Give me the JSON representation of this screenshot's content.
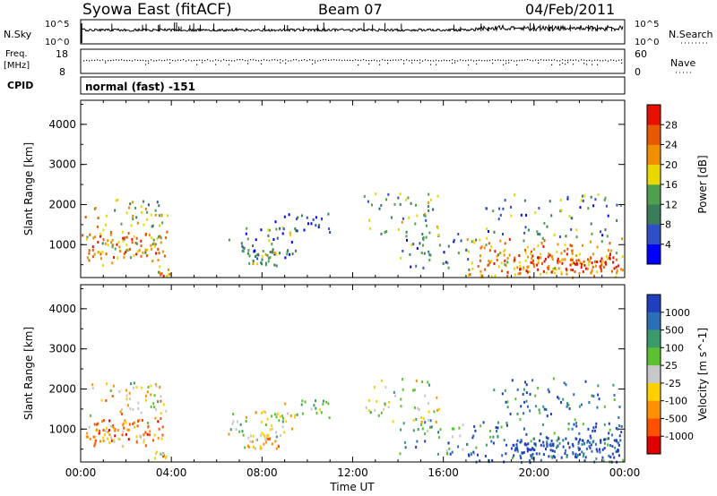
{
  "header": {
    "station": "Syowa East (fitACF)",
    "beam": "Beam 07",
    "date": "04/Feb/2011"
  },
  "noise_panel": {
    "left_label": "N.Sky",
    "right_label": "N.Search",
    "tick_top": "10^5",
    "tick_bottom": "10^0"
  },
  "freq_panel": {
    "left_label_1": "Freq.",
    "left_label_2": "[MHz]",
    "right_label": "Nave",
    "left_ticks": [
      "18",
      "8"
    ],
    "right_ticks": [
      "60",
      "0"
    ]
  },
  "cpid": {
    "label": "CPID",
    "value": "normal (fast) -151"
  },
  "chart_data": [
    {
      "type": "heatmap",
      "name": "power",
      "ylabel": "Slant Range [km]",
      "ylim": [
        180,
        4600
      ],
      "yticks": [
        "1000",
        "2000",
        "3000",
        "4000"
      ],
      "xlim": [
        0,
        24
      ],
      "colorbar": {
        "label": "Power [dB]",
        "tick_labels": [
          "4",
          "8",
          "12",
          "16",
          "20",
          "24",
          "28"
        ],
        "colors": [
          "#0000ff",
          "#2f4fc8",
          "#3a7d5a",
          "#4ea04e",
          "#e8d800",
          "#f09000",
          "#e85800",
          "#e81000"
        ]
      }
    },
    {
      "type": "heatmap",
      "name": "velocity",
      "ylabel": "Slant Range [km]",
      "ylim": [
        180,
        4600
      ],
      "yticks": [
        "1000",
        "2000",
        "3000",
        "4000"
      ],
      "xlim": [
        0,
        24
      ],
      "xlabel": "Time UT",
      "xticks": [
        "00:00",
        "04:00",
        "08:00",
        "12:00",
        "16:00",
        "20:00",
        "00:00"
      ],
      "colorbar": {
        "label": "Velocity [m s^-1]",
        "tick_labels": [
          "1000",
          "500",
          "100",
          "25",
          "-25",
          "-100",
          "-500",
          "-1000"
        ],
        "colors": [
          "#1f3fbf",
          "#2a6fb8",
          "#3a9a6a",
          "#5cc030",
          "#c8c8c8",
          "#ffd000",
          "#ff9000",
          "#ff5000",
          "#e00000"
        ]
      }
    }
  ]
}
